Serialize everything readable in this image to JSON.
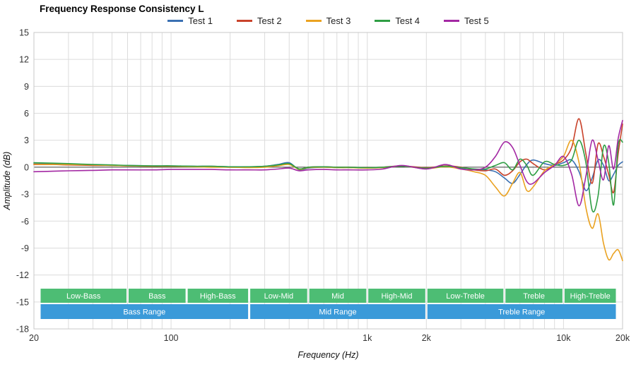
{
  "title": "Frequency Response Consistency L",
  "chart_data": {
    "type": "line",
    "title": "Frequency Response Consistency L",
    "xlabel": "Frequency (Hz)",
    "ylabel": "Amplitude (dB)",
    "x_scale": "log",
    "xlim": [
      20,
      20000
    ],
    "ylim": [
      -18,
      15
    ],
    "grid": true,
    "legend_position": "top",
    "y_ticks": [
      15,
      12,
      9,
      6,
      3,
      0,
      -3,
      -6,
      -9,
      -12,
      -15,
      -18
    ],
    "x_ticks": [
      {
        "value": 20,
        "label": "20"
      },
      {
        "value": 100,
        "label": "100"
      },
      {
        "value": 1000,
        "label": "1k"
      },
      {
        "value": 2000,
        "label": "2k"
      },
      {
        "value": 10000,
        "label": "10k"
      },
      {
        "value": 20000,
        "label": "20k"
      }
    ],
    "x": [
      20,
      25,
      30,
      40,
      50,
      60,
      80,
      100,
      130,
      160,
      200,
      250,
      300,
      350,
      400,
      450,
      500,
      600,
      700,
      800,
      1000,
      1200,
      1500,
      2000,
      2500,
      3000,
      3500,
      4000,
      4500,
      5000,
      5500,
      6000,
      6500,
      7000,
      8000,
      9000,
      10000,
      11000,
      12000,
      13000,
      14000,
      15000,
      16000,
      17000,
      18000,
      19000,
      20000
    ],
    "series": [
      {
        "name": "Test 1",
        "color": "#3a70b2",
        "values": [
          0.4,
          0.35,
          0.3,
          0.25,
          0.2,
          0.2,
          0.15,
          0.15,
          0.1,
          0.1,
          0.05,
          0.05,
          0.1,
          0.3,
          0.5,
          -0.3,
          -0.1,
          0,
          -0.05,
          -0.05,
          -0.1,
          -0.05,
          0.1,
          -0.1,
          0.1,
          -0.1,
          -0.2,
          -0.3,
          -0.5,
          -1.2,
          -1.8,
          -0.8,
          0.3,
          0.8,
          0.4,
          0.2,
          0.5,
          0.8,
          -0.5,
          -2.6,
          -1.2,
          0.8,
          0.2,
          -1.5,
          -0.8,
          0.2,
          0.6
        ]
      },
      {
        "name": "Test 2",
        "color": "#c9432b",
        "values": [
          0.3,
          0.3,
          0.25,
          0.2,
          0.2,
          0.15,
          0.1,
          0.1,
          0.05,
          0.05,
          0,
          0,
          0.05,
          0.2,
          0.35,
          -0.2,
          0,
          0.05,
          0,
          0,
          -0.05,
          0,
          0.15,
          -0.05,
          0.15,
          0,
          -0.3,
          -0.4,
          -0.2,
          -0.9,
          -0.4,
          0.6,
          0.9,
          0.4,
          -0.3,
          0.3,
          0.8,
          2.2,
          5.4,
          1.5,
          -1.8,
          2.6,
          1.2,
          -0.8,
          -2.8,
          1.5,
          4.8
        ]
      },
      {
        "name": "Test 3",
        "color": "#eaa221",
        "values": [
          0.35,
          0.3,
          0.3,
          0.25,
          0.2,
          0.15,
          0.1,
          0.1,
          0.05,
          0,
          0,
          -0.05,
          0,
          0.15,
          0.3,
          -0.25,
          -0.05,
          0,
          -0.05,
          -0.05,
          -0.1,
          -0.05,
          0.1,
          -0.15,
          0.05,
          -0.2,
          -0.5,
          -0.9,
          -2.2,
          -3.2,
          -1.8,
          -0.6,
          -2.6,
          -2.2,
          -0.4,
          0.3,
          1.2,
          3.0,
          0.5,
          -4.5,
          -6.8,
          -5.2,
          -8.5,
          -10.3,
          -9.6,
          -9.2,
          -10.4
        ]
      },
      {
        "name": "Test 4",
        "color": "#2f9e44",
        "values": [
          0.5,
          0.45,
          0.4,
          0.3,
          0.25,
          0.2,
          0.15,
          0.15,
          0.1,
          0.1,
          0.05,
          0.05,
          0.1,
          0.25,
          0.4,
          -0.2,
          0,
          0.05,
          0,
          0,
          -0.05,
          0,
          0.1,
          -0.1,
          0.1,
          -0.05,
          -0.2,
          -0.2,
          0.2,
          0.5,
          -0.3,
          0.9,
          0.2,
          -0.9,
          0.6,
          0.3,
          0.2,
          0.8,
          3.0,
          0.5,
          -4.8,
          -3.2,
          2.3,
          0.5,
          -4.2,
          2.5,
          2.8
        ]
      },
      {
        "name": "Test 5",
        "color": "#a328a3",
        "values": [
          -0.5,
          -0.45,
          -0.4,
          -0.35,
          -0.3,
          -0.3,
          -0.3,
          -0.25,
          -0.25,
          -0.25,
          -0.3,
          -0.3,
          -0.3,
          -0.2,
          -0.1,
          -0.4,
          -0.3,
          -0.25,
          -0.3,
          -0.3,
          -0.3,
          -0.2,
          0.2,
          -0.2,
          0.3,
          -0.2,
          -0.3,
          0,
          1.2,
          2.8,
          2.2,
          0.2,
          -1.6,
          -1.8,
          -0.6,
          0.2,
          1.2,
          -0.8,
          -4.3,
          -1.0,
          3.0,
          0.8,
          -1.4,
          2.4,
          -0.2,
          3.2,
          5.2
        ]
      }
    ],
    "bands": {
      "sub_color": "#4dbd74",
      "range_color": "#3a9ad9",
      "sub": [
        {
          "label": "Low-Bass",
          "from": 20,
          "to": 60
        },
        {
          "label": "Bass",
          "from": 60,
          "to": 120
        },
        {
          "label": "High-Bass",
          "from": 120,
          "to": 250
        },
        {
          "label": "Low-Mid",
          "from": 250,
          "to": 500
        },
        {
          "label": "Mid",
          "from": 500,
          "to": 1000
        },
        {
          "label": "High-Mid",
          "from": 1000,
          "to": 2000
        },
        {
          "label": "Low-Treble",
          "from": 2000,
          "to": 5000
        },
        {
          "label": "Treble",
          "from": 5000,
          "to": 10000
        },
        {
          "label": "High-Treble",
          "from": 10000,
          "to": 20000
        }
      ],
      "ranges": [
        {
          "label": "Bass Range",
          "from": 20,
          "to": 250
        },
        {
          "label": "Mid Range",
          "from": 250,
          "to": 2000
        },
        {
          "label": "Treble Range",
          "from": 2000,
          "to": 20000
        }
      ]
    }
  }
}
